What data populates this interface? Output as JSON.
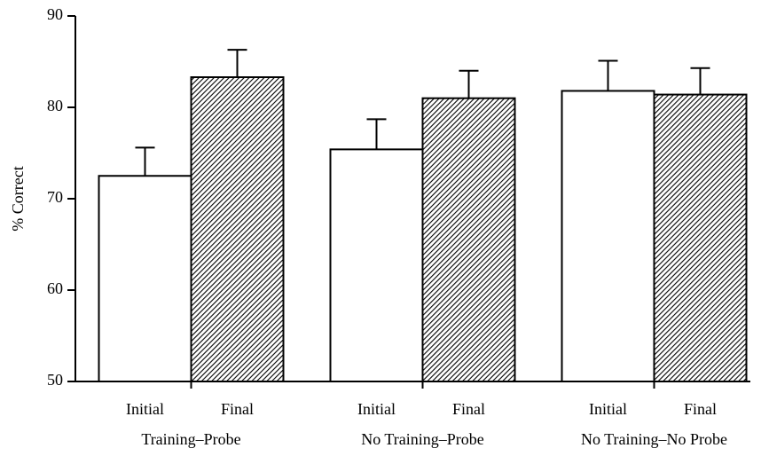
{
  "chart_data": {
    "type": "bar",
    "ylabel": "% Correct",
    "categories": [
      "Training–Probe",
      "No Training–Probe",
      "No Training–No Probe"
    ],
    "series": [
      {
        "name": "Initial",
        "color": "#ffffff",
        "values": [
          72.5,
          75.4,
          81.8
        ],
        "errors": [
          3.1,
          3.3,
          3.3
        ]
      },
      {
        "name": "Final",
        "color": "#000000",
        "pattern": "hatch",
        "values": [
          83.3,
          81.0,
          81.4
        ],
        "errors": [
          3.0,
          3.0,
          2.9
        ]
      }
    ],
    "ylim": [
      50,
      90
    ],
    "yticks": [
      50,
      60,
      70,
      80,
      90
    ],
    "grid": false
  }
}
